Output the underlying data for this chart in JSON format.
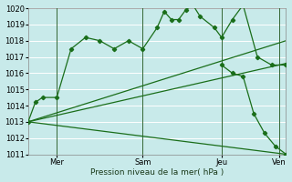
{
  "title": "Pression niveau de la mer( hPa )",
  "bg_color": "#c8eaea",
  "grid_color": "#ffffff",
  "line_color": "#1a6e1a",
  "vline_color": "#336633",
  "ylim": [
    1011,
    1020
  ],
  "yticks": [
    1011,
    1012,
    1013,
    1014,
    1015,
    1016,
    1017,
    1018,
    1019,
    1020
  ],
  "xlim": [
    0,
    72
  ],
  "day_positions": [
    8,
    32,
    54,
    70
  ],
  "day_labels": [
    "Mer",
    "Sam",
    "Jeu",
    "Ven"
  ],
  "vline_positions": [
    8,
    32,
    54,
    70
  ],
  "series1_x": [
    0,
    2,
    4,
    8,
    12,
    16,
    20,
    24,
    28,
    32,
    36,
    38,
    40,
    42,
    44,
    46,
    48,
    52,
    54,
    57,
    60,
    64,
    68,
    72
  ],
  "series1_y": [
    1013.0,
    1014.2,
    1014.5,
    1014.5,
    1017.5,
    1018.2,
    1018.0,
    1017.5,
    1018.0,
    1017.5,
    1018.8,
    1019.8,
    1019.3,
    1019.3,
    1019.9,
    1020.2,
    1019.5,
    1018.8,
    1018.2,
    1019.3,
    1020.2,
    1017.0,
    1016.5,
    1016.5
  ],
  "series2_x": [
    0,
    72
  ],
  "series2_y": [
    1013.0,
    1018.0
  ],
  "series3_x": [
    0,
    72
  ],
  "series3_y": [
    1013.0,
    1016.6
  ],
  "series4_x": [
    0,
    72
  ],
  "series4_y": [
    1013.0,
    1011.0
  ],
  "series5_x": [
    54,
    57,
    60,
    63,
    66,
    69,
    72
  ],
  "series5_y": [
    1016.5,
    1016.0,
    1015.8,
    1013.5,
    1012.3,
    1011.5,
    1011.0
  ]
}
